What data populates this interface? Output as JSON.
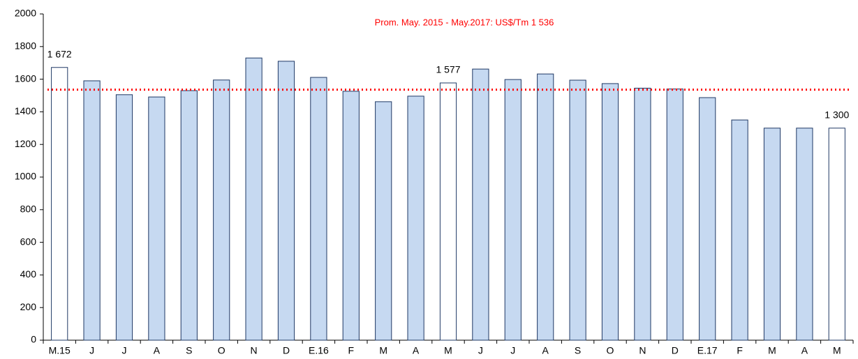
{
  "chart_data": {
    "type": "bar",
    "categories": [
      "M.15",
      "J",
      "J",
      "A",
      "S",
      "O",
      "N",
      "D",
      "E.16",
      "F",
      "M",
      "A",
      "M",
      "J",
      "J",
      "A",
      "S",
      "O",
      "N",
      "D",
      "E.17",
      "F",
      "M",
      "A",
      "M"
    ],
    "values": [
      1672,
      1590,
      1505,
      1491,
      1530,
      1595,
      1730,
      1710,
      1611,
      1526,
      1462,
      1496,
      1577,
      1662,
      1598,
      1632,
      1594,
      1573,
      1545,
      1540,
      1487,
      1350,
      1300,
      1300,
      1300
    ],
    "value_labels": [
      "1 672",
      null,
      null,
      null,
      null,
      null,
      null,
      null,
      null,
      null,
      null,
      null,
      "1 577",
      null,
      null,
      null,
      null,
      null,
      null,
      null,
      null,
      null,
      null,
      null,
      "1 300"
    ],
    "colors": [
      "#ffffff",
      "#c6d9f1",
      "#c6d9f1",
      "#c6d9f1",
      "#c6d9f1",
      "#c6d9f1",
      "#c6d9f1",
      "#c6d9f1",
      "#c6d9f1",
      "#c6d9f1",
      "#c6d9f1",
      "#c6d9f1",
      "#ffffff",
      "#c6d9f1",
      "#c6d9f1",
      "#c6d9f1",
      "#c6d9f1",
      "#c6d9f1",
      "#c6d9f1",
      "#c6d9f1",
      "#c6d9f1",
      "#c6d9f1",
      "#c6d9f1",
      "#c6d9f1",
      "#ffffff"
    ],
    "border_color": "#1f3864",
    "ylim": [
      0,
      2000
    ],
    "yticks": [
      0,
      200,
      400,
      600,
      800,
      1000,
      1200,
      1400,
      1600,
      1800,
      2000
    ],
    "reference_line": {
      "value": 1536,
      "label": "Prom. May. 2015 - May.2017: US$/Tm 1 536",
      "color": "#ff0000"
    }
  }
}
